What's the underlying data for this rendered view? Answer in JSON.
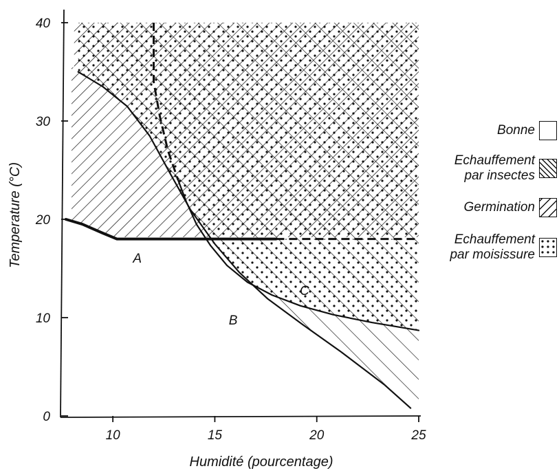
{
  "chart_data": {
    "type": "area",
    "xlabel": "Humidité (pourcentage)",
    "ylabel": "Temperature (°C)",
    "xlim": [
      7.5,
      25
    ],
    "ylim": [
      0,
      40
    ],
    "xticks": [
      10,
      15,
      20,
      25
    ],
    "yticks": [
      0,
      10,
      20,
      30,
      40
    ],
    "curves": [
      {
        "name": "A",
        "style": "solid-bold",
        "x": [
          7.7,
          8.5,
          9.5,
          10.2,
          14,
          18
        ],
        "y": [
          20,
          19.5,
          18.6,
          18,
          18,
          18
        ]
      },
      {
        "name": "A (extension)",
        "style": "dashed",
        "x": [
          18,
          25
        ],
        "y": [
          18,
          18
        ]
      },
      {
        "name": "B",
        "style": "solid",
        "x": [
          8.3,
          9.5,
          10.7,
          11.8,
          12.8,
          13.8,
          15,
          16.2,
          17.6,
          19.3,
          21.2,
          23.3,
          24.6
        ],
        "y": [
          35,
          33.5,
          31.5,
          28.5,
          24.7,
          21,
          17.5,
          14.6,
          11.9,
          9.3,
          6.5,
          3.2,
          0.8
        ]
      },
      {
        "name": "C",
        "style": "solid",
        "x": [
          13.2,
          13.6,
          14.1,
          14.8,
          15.6,
          16.6,
          17.8,
          19.2,
          20.8,
          22.7,
          25
        ],
        "y": [
          24,
          21.8,
          19.5,
          17.3,
          15.3,
          13.6,
          12.3,
          11.2,
          10.3,
          9.5,
          8.7
        ]
      },
      {
        "name": "insect limit",
        "style": "dashed",
        "x": [
          12,
          12,
          12.3,
          12.7,
          13.2
        ],
        "y": [
          40,
          34,
          30.5,
          27,
          24
        ]
      }
    ],
    "curve_labels": [
      {
        "text": "A",
        "x": 11.2,
        "y": 15.6
      },
      {
        "text": "B",
        "x": 15.9,
        "y": 9.3
      },
      {
        "text": "C",
        "x": 19.4,
        "y": 12.3
      }
    ],
    "legend": [
      {
        "label": "Bonne",
        "pattern": "none"
      },
      {
        "label": "Echauffement\npar insectes",
        "pattern": "crosshatch"
      },
      {
        "label": "Germination",
        "pattern": "hatch"
      },
      {
        "label": "Echauffement\npar moisissure",
        "pattern": "dots"
      }
    ],
    "legend_position": "right",
    "grid": false
  }
}
